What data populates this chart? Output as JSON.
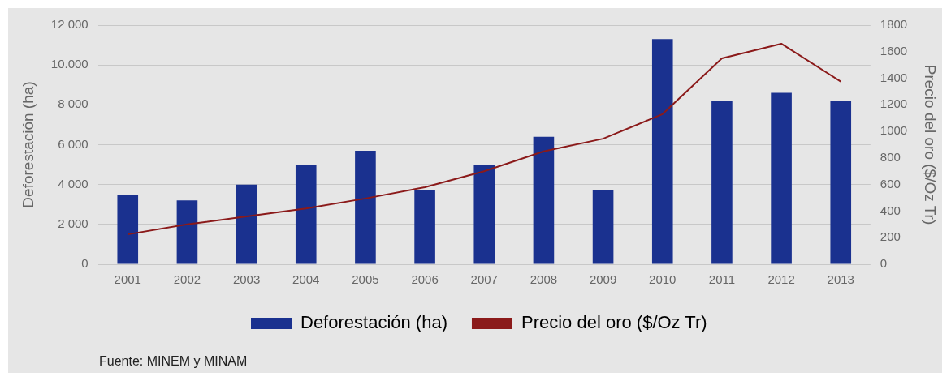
{
  "chart_data": {
    "type": "bar",
    "ylabel": "Deforestación (ha)",
    "y2label": "Precio del oro ($/Oz Tr)",
    "categories": [
      "2001",
      "2002",
      "2003",
      "2004",
      "2005",
      "2006",
      "2007",
      "2008",
      "2009",
      "2010",
      "2011",
      "2012",
      "2013"
    ],
    "series": [
      {
        "name": "Deforestación (ha)",
        "color": "#1a318f",
        "values": [
          3500,
          3200,
          4000,
          5000,
          5700,
          3700,
          5000,
          6400,
          3700,
          11300,
          8200,
          8600,
          8200
        ]
      },
      {
        "name": "Precio del oro ($/Oz Tr)",
        "type": "line",
        "axis": "y2",
        "color": "#8b1a1a",
        "values": [
          225,
          300,
          360,
          420,
          495,
          580,
          700,
          850,
          945,
          1130,
          1550,
          1660,
          1375
        ]
      }
    ],
    "ylim": [
      0,
      12000
    ],
    "yticks": [
      0,
      {
        "value": 2000,
        "label": "2 000"
      },
      {
        "value": 4000,
        "label": "4 000"
      },
      {
        "value": 6000,
        "label": "6 000"
      },
      {
        "value": 8000,
        "label": "8 000"
      },
      {
        "value": 10000,
        "label": "10.000"
      },
      {
        "value": 12000,
        "label": "12 000"
      }
    ],
    "y2lim": [
      0,
      1800
    ],
    "y2ticks": [
      0,
      200,
      400,
      600,
      800,
      1000,
      1200,
      1400,
      1600,
      1800
    ],
    "grid": "y",
    "legend": "bottom",
    "marker": "none",
    "annotations": [
      "Fuente: MINEM y MINAM"
    ]
  }
}
